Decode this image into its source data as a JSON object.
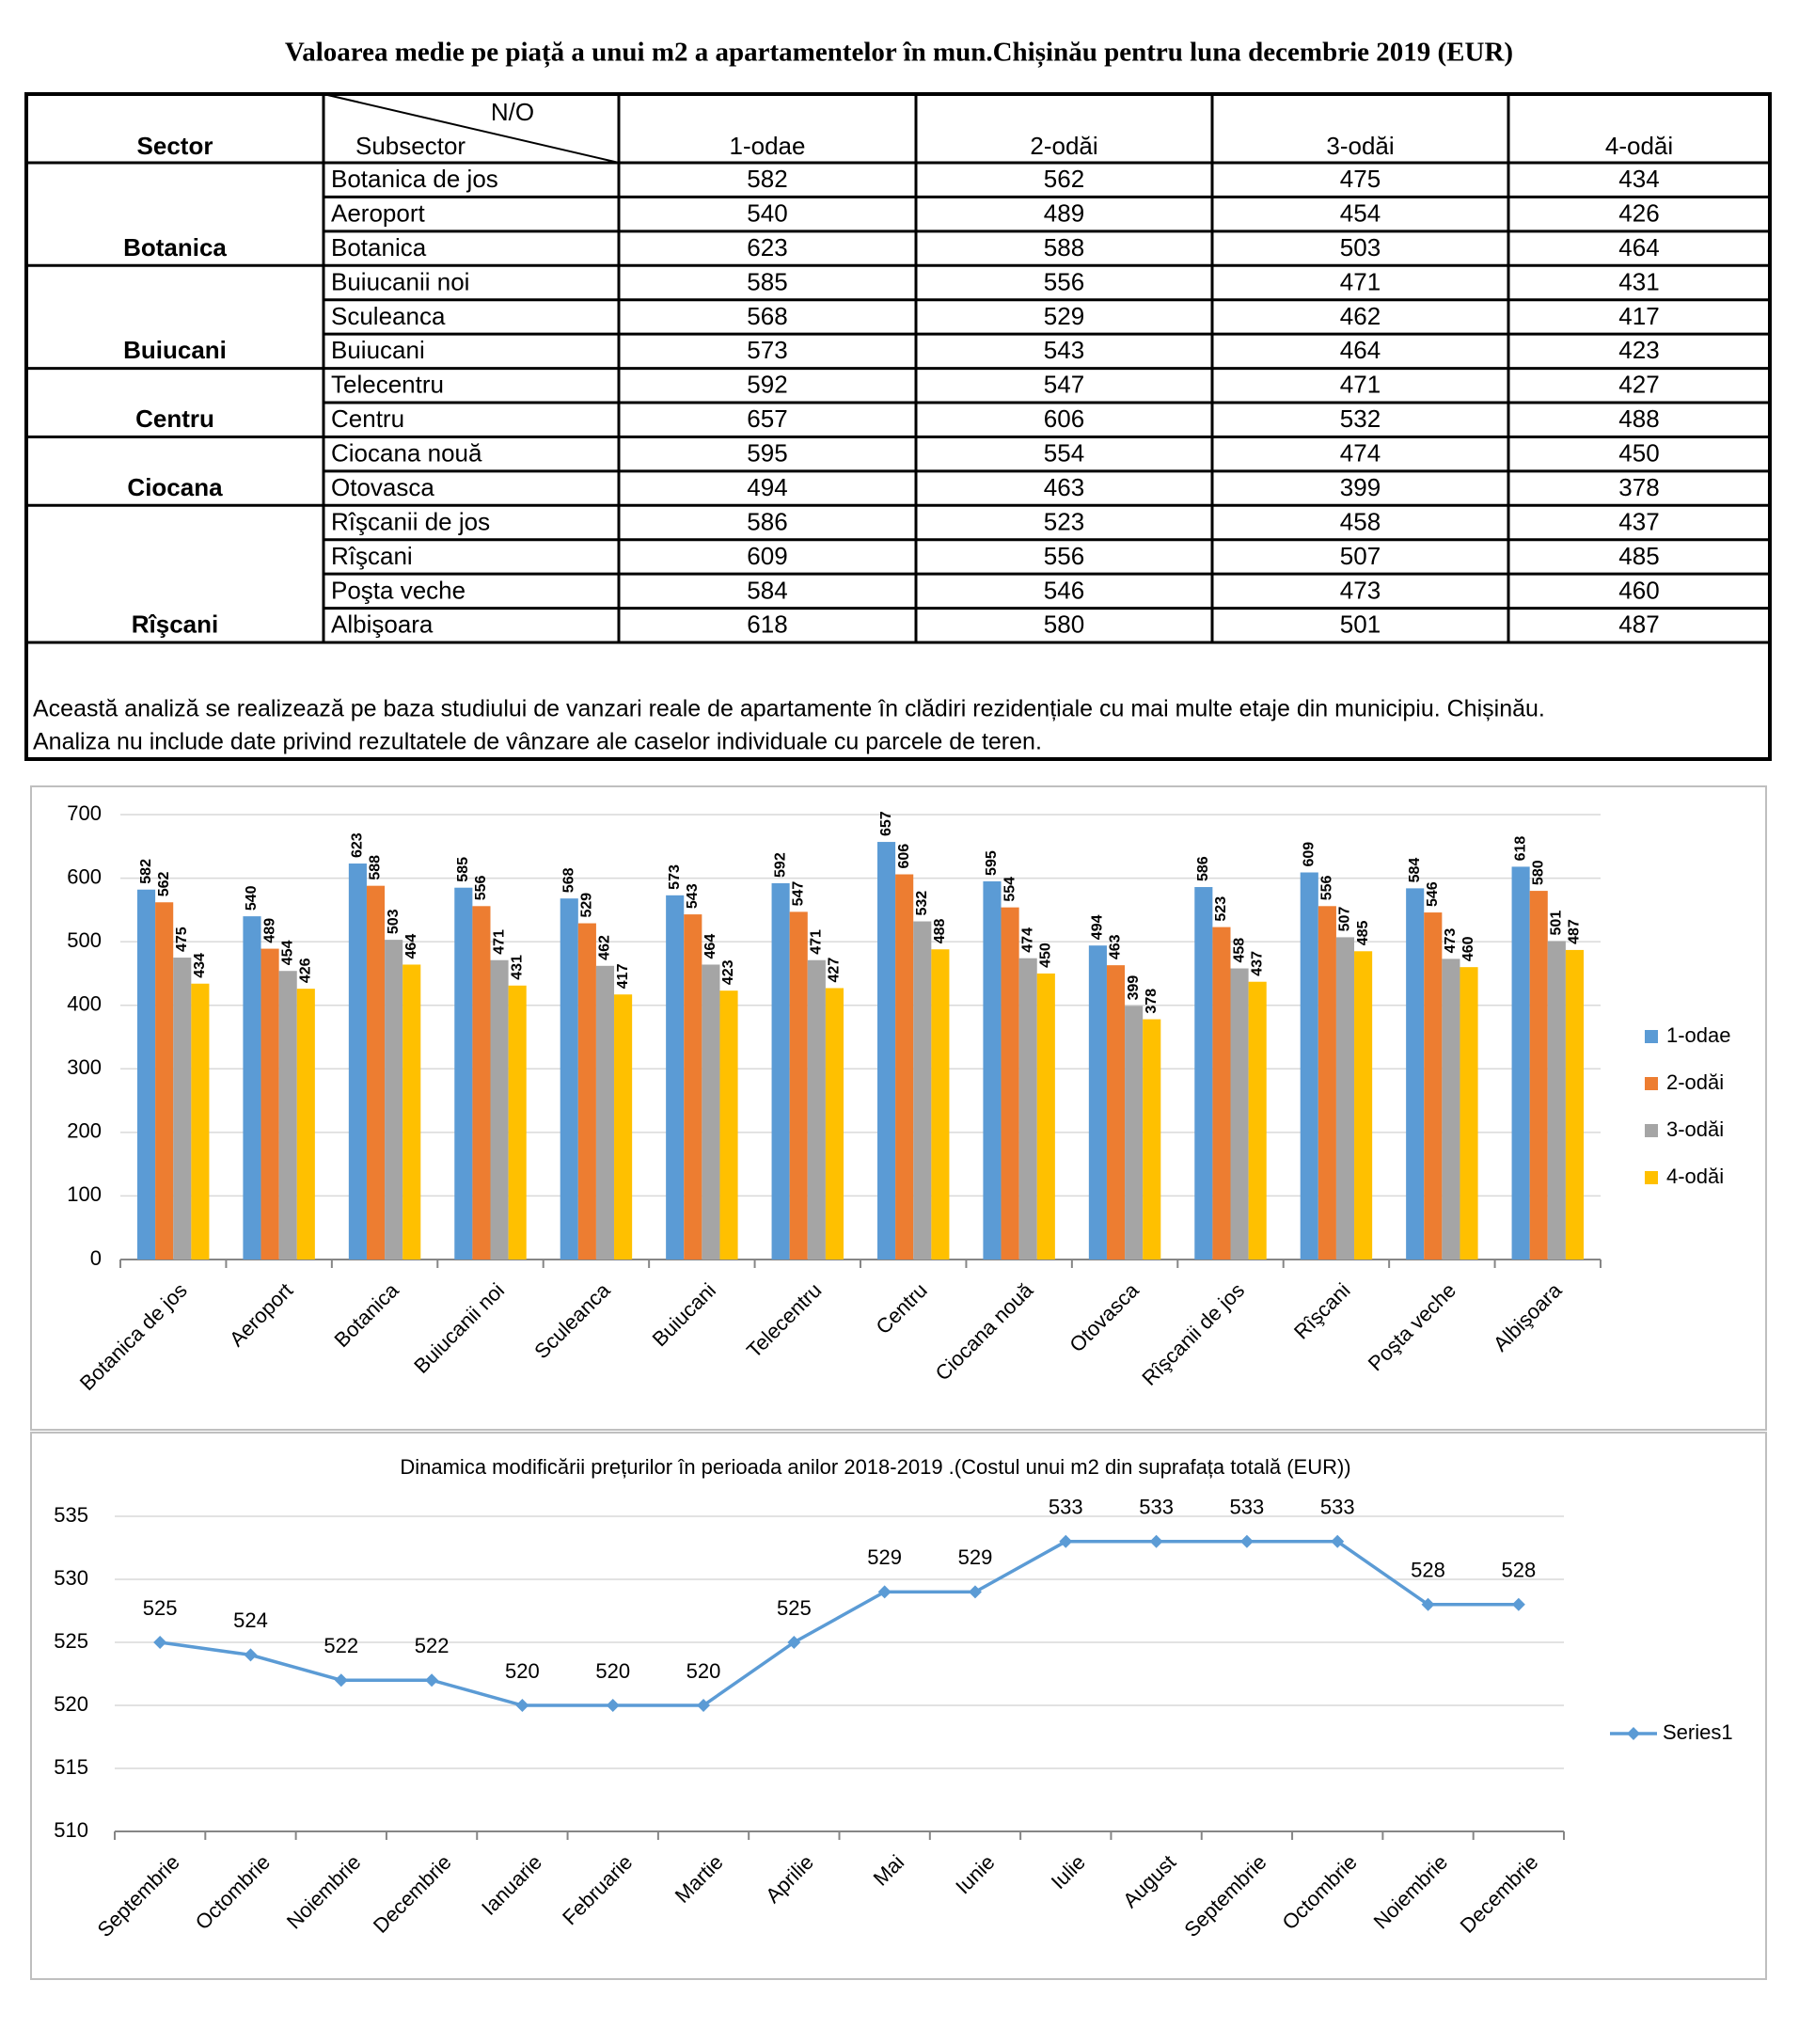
{
  "title": "Valoarea medie pe piață a unui m2 a apartamentelor în mun.Chișinău pentru luna decembrie 2019 (EUR)",
  "table": {
    "header": {
      "sector": "Sector",
      "no": "N/O",
      "subsector": "Subsector",
      "columns": [
        "1-odae",
        "2-odăi",
        "3-odăi",
        "4-odăi"
      ]
    },
    "groups": [
      {
        "sector": "Botanica",
        "rows": [
          {
            "subsector": "Botanica de jos",
            "values": [
              582,
              562,
              475,
              434
            ]
          },
          {
            "subsector": "Aeroport",
            "values": [
              540,
              489,
              454,
              426
            ]
          },
          {
            "subsector": "Botanica",
            "values": [
              623,
              588,
              503,
              464
            ]
          }
        ]
      },
      {
        "sector": "Buiucani",
        "rows": [
          {
            "subsector": "Buiucanii noi",
            "values": [
              585,
              556,
              471,
              431
            ]
          },
          {
            "subsector": "Sculeanca",
            "values": [
              568,
              529,
              462,
              417
            ]
          },
          {
            "subsector": "Buiucani",
            "values": [
              573,
              543,
              464,
              423
            ]
          }
        ]
      },
      {
        "sector": "Centru",
        "rows": [
          {
            "subsector": "Telecentru",
            "values": [
              592,
              547,
              471,
              427
            ]
          },
          {
            "subsector": "Centru",
            "values": [
              657,
              606,
              532,
              488
            ]
          }
        ]
      },
      {
        "sector": "Ciocana",
        "rows": [
          {
            "subsector": "Ciocana nouă",
            "values": [
              595,
              554,
              474,
              450
            ]
          },
          {
            "subsector": "Otovasca",
            "values": [
              494,
              463,
              399,
              378
            ]
          }
        ]
      },
      {
        "sector": "Rîşcani",
        "rows": [
          {
            "subsector": "Rîşcanii de jos",
            "values": [
              586,
              523,
              458,
              437
            ]
          },
          {
            "subsector": "Rîşcani",
            "values": [
              609,
              556,
              507,
              485
            ]
          },
          {
            "subsector": "Poşta veche",
            "values": [
              584,
              546,
              473,
              460
            ]
          },
          {
            "subsector": "Albişoara",
            "values": [
              618,
              580,
              501,
              487
            ]
          }
        ]
      }
    ],
    "note": [
      "Această analiză se realizează pe baza studiului de vanzari reale de apartamente în clădiri rezidențiale cu mai multe etaje din municipiu. Chișinău.",
      "Analiza nu include date privind rezultatele de vânzare ale caselor individuale cu parcele de teren."
    ]
  },
  "chart_data": [
    {
      "type": "bar",
      "categories": [
        "Botanica de jos",
        "Aeroport",
        "Botanica",
        "Buiucanii noi",
        "Sculeanca",
        "Buiucani",
        "Telecentru",
        "Centru",
        "Ciocana nouă",
        "Otovasca",
        "Rîşcanii de jos",
        "Rîşcani",
        "Poşta veche",
        "Albişoara"
      ],
      "series": [
        {
          "name": "1-odae",
          "color": "#5b9bd5",
          "values": [
            582,
            540,
            623,
            585,
            568,
            573,
            592,
            657,
            595,
            494,
            586,
            609,
            584,
            618
          ]
        },
        {
          "name": "2-odăi",
          "color": "#ed7d31",
          "values": [
            562,
            489,
            588,
            556,
            529,
            543,
            547,
            606,
            554,
            463,
            523,
            556,
            546,
            580
          ]
        },
        {
          "name": "3-odăi",
          "color": "#a5a5a5",
          "values": [
            475,
            454,
            503,
            471,
            462,
            464,
            471,
            532,
            474,
            399,
            458,
            507,
            473,
            501
          ]
        },
        {
          "name": "4-odăi",
          "color": "#ffc000",
          "values": [
            434,
            426,
            464,
            431,
            417,
            423,
            427,
            488,
            450,
            378,
            437,
            485,
            460,
            487
          ]
        }
      ],
      "ylim": [
        0,
        700
      ],
      "yticks": [
        0,
        100,
        200,
        300,
        400,
        500,
        600,
        700
      ],
      "grid": true,
      "legend": "right"
    },
    {
      "type": "line",
      "title": "Dinamica modificării prețurilor în perioada anilor 2018-2019 .(Costul unui m2 din suprafața totală (EUR))",
      "categories": [
        "Septembrie",
        "Octombrie",
        "Noiembrie",
        "Decembrie",
        "Ianuarie",
        "Februarie",
        "Martie",
        "Aprilie",
        "Mai",
        "Iunie",
        "Iulie",
        "August",
        "Septembrie",
        "Octombrie",
        "Noiembrie",
        "Decembrie"
      ],
      "series": [
        {
          "name": "Series1",
          "color": "#5b9bd5",
          "values": [
            525,
            524,
            522,
            522,
            520,
            520,
            520,
            525,
            529,
            529,
            533,
            533,
            533,
            533,
            528,
            528
          ]
        }
      ],
      "ylim": [
        510,
        535
      ],
      "yticks": [
        510,
        515,
        520,
        525,
        530,
        535
      ],
      "grid": true,
      "legend": "right"
    }
  ]
}
